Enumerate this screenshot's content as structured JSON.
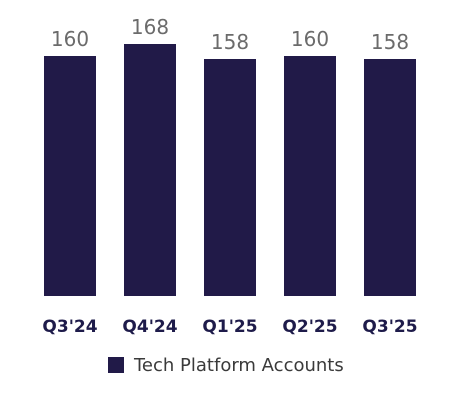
{
  "chart_data": {
    "type": "bar",
    "categories": [
      "Q3'24",
      "Q4'24",
      "Q1'25",
      "Q2'25",
      "Q3'25"
    ],
    "series": [
      {
        "name": "Tech Platform Accounts",
        "values": [
          160,
          168,
          158,
          160,
          158
        ],
        "color": "#211a48"
      }
    ],
    "data_labels": [
      "160",
      "168",
      "158",
      "160",
      "158"
    ],
    "legend": {
      "placement": "bottom-center",
      "label": "Tech Platform Accounts"
    },
    "title": "",
    "xlabel": "",
    "ylabel": "",
    "ylim": [
      0,
      168
    ],
    "grid": false
  }
}
